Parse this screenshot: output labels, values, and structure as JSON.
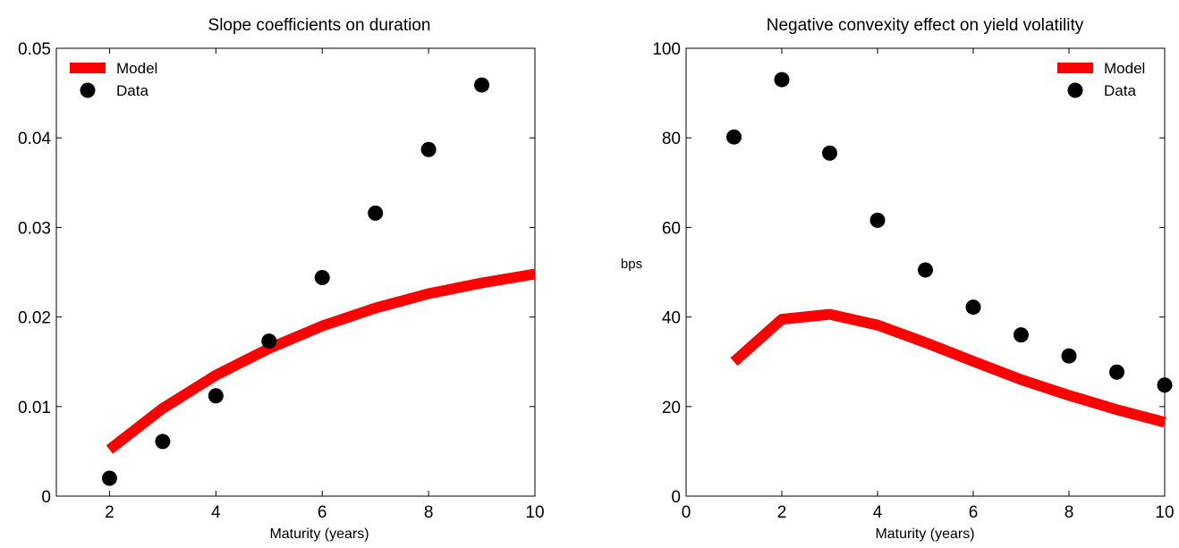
{
  "chart_data": [
    {
      "type": "line",
      "title": "Slope coefficients on duration",
      "xlabel": "Maturity (years)",
      "ylabel": "",
      "xlim": [
        1,
        10
      ],
      "ylim": [
        0,
        0.05
      ],
      "xticks": [
        2,
        4,
        6,
        8,
        10
      ],
      "xtick_labels": [
        "2",
        "4",
        "6",
        "8",
        "10"
      ],
      "yticks": [
        0,
        0.01,
        0.02,
        0.03,
        0.04,
        0.05
      ],
      "ytick_labels": [
        "0",
        "0.01",
        "0.02",
        "0.03",
        "0.04",
        "0.05"
      ],
      "grid": false,
      "legend_position": "top-left",
      "series": [
        {
          "name": "Model",
          "style": "line",
          "color": "#ff0000",
          "x": [
            2,
            3,
            4,
            5,
            6,
            7,
            8,
            9,
            10
          ],
          "y": [
            0.0052,
            0.0098,
            0.0135,
            0.0165,
            0.019,
            0.021,
            0.0226,
            0.0238,
            0.0248
          ]
        },
        {
          "name": "Data",
          "style": "scatter",
          "color": "#000000",
          "x": [
            2,
            3,
            4,
            5,
            6,
            7,
            8,
            9
          ],
          "y": [
            0.002,
            0.0061,
            0.0112,
            0.0173,
            0.0244,
            0.0316,
            0.0387,
            0.0459
          ]
        }
      ]
    },
    {
      "type": "line",
      "title": "Negative convexity effect on yield volatility",
      "xlabel": "Maturity (years)",
      "ylabel": "bps",
      "xlim": [
        0,
        10
      ],
      "ylim": [
        0,
        100
      ],
      "xticks": [
        0,
        2,
        4,
        6,
        8,
        10
      ],
      "xtick_labels": [
        "0",
        "2",
        "4",
        "6",
        "8",
        "10"
      ],
      "yticks": [
        0,
        20,
        40,
        60,
        80,
        100
      ],
      "ytick_labels": [
        "0",
        "20",
        "40",
        "60",
        "80",
        "100"
      ],
      "grid": false,
      "legend_position": "top-right",
      "series": [
        {
          "name": "Model",
          "style": "line",
          "color": "#ff0000",
          "x": [
            1,
            2,
            3,
            4,
            5,
            6,
            7,
            8,
            9,
            10
          ],
          "y": [
            30,
            39.5,
            40.6,
            38.2,
            34.3,
            30.1,
            26,
            22.5,
            19.3,
            16.5
          ]
        },
        {
          "name": "Data",
          "style": "scatter",
          "color": "#000000",
          "x": [
            1,
            2,
            3,
            4,
            5,
            6,
            7,
            8,
            9,
            10
          ],
          "y": [
            80.2,
            93,
            76.6,
            61.6,
            50.5,
            42.2,
            36,
            31.3,
            27.7,
            24.8
          ]
        }
      ]
    }
  ]
}
